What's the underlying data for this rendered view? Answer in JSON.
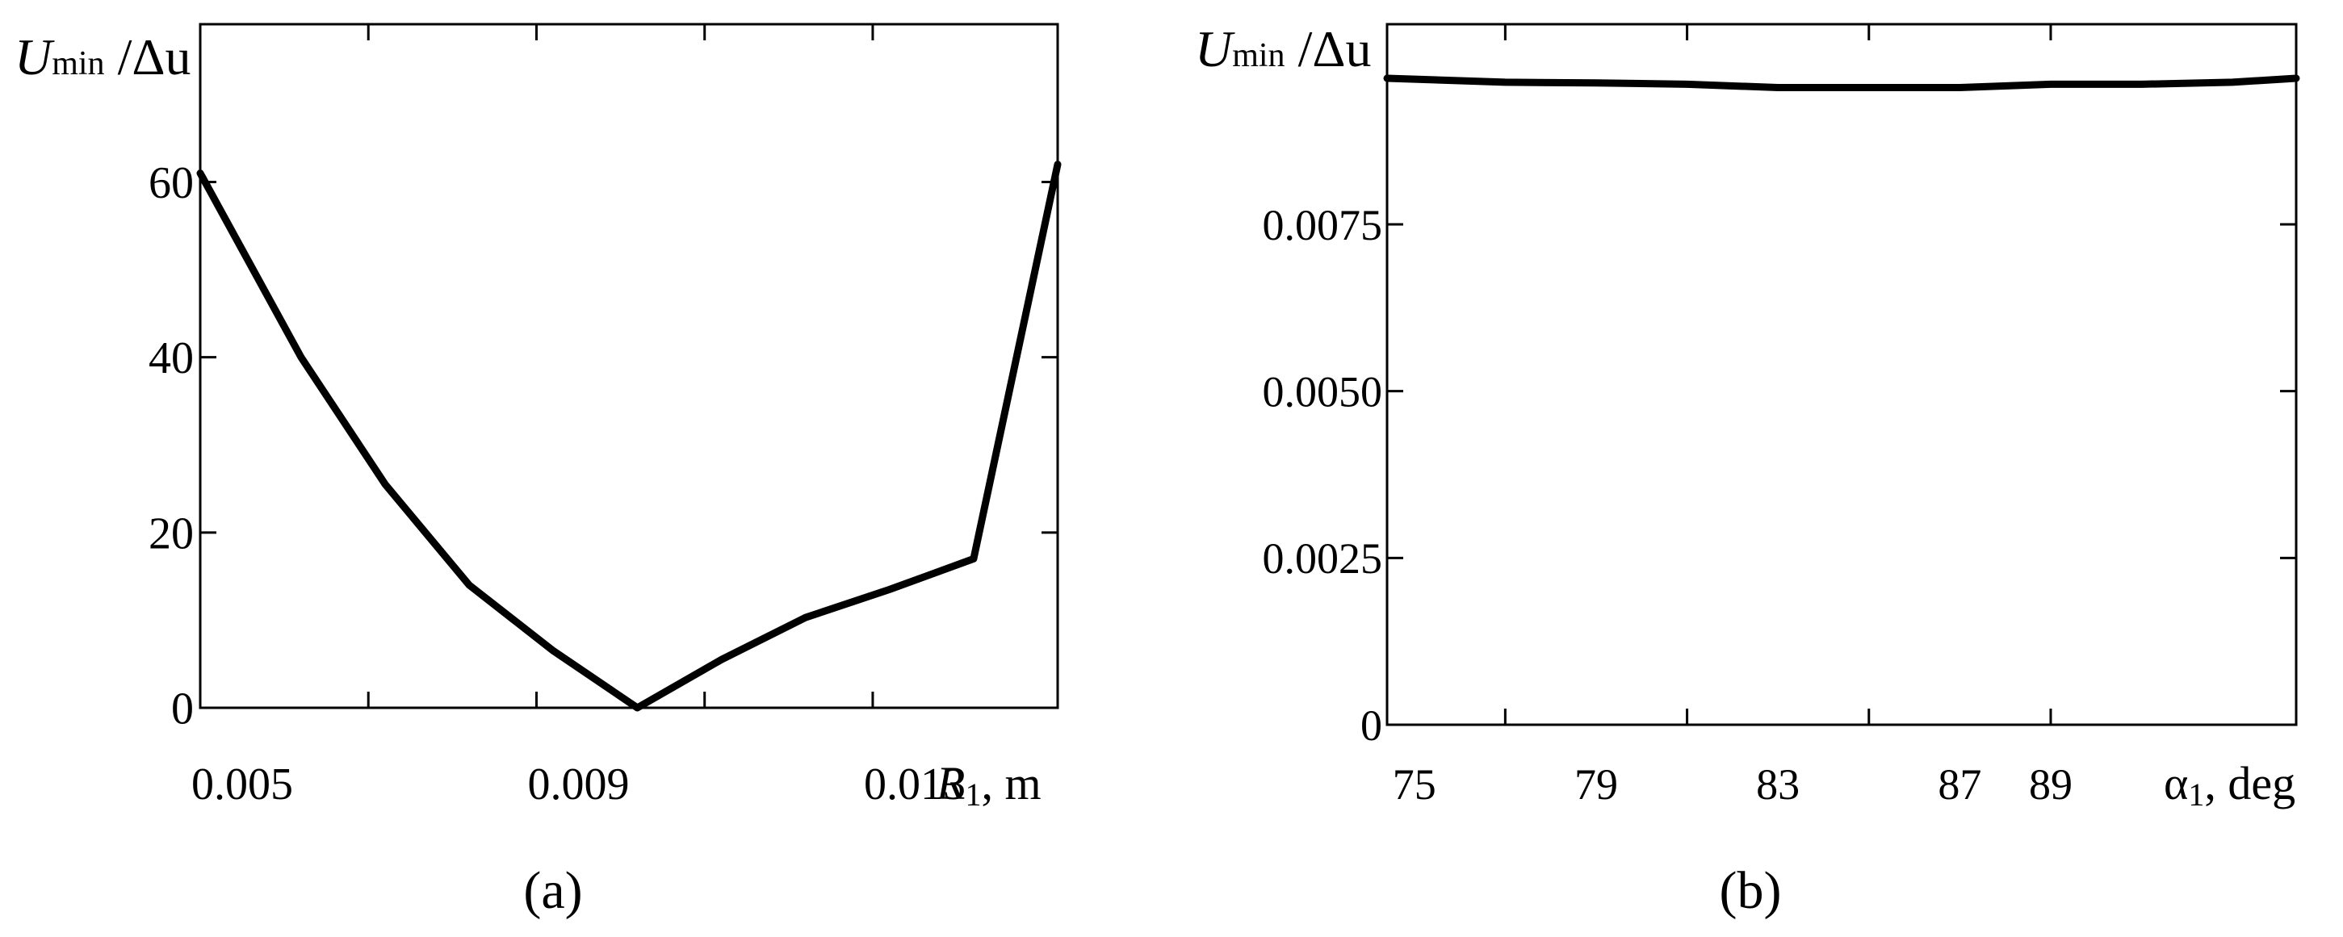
{
  "chart_data": [
    {
      "type": "line",
      "panel_label": "(a)",
      "ylabel_main": "U",
      "ylabel_sub": "min",
      "ylabel_rest": " /Δu",
      "xlabel_main": "R",
      "xlabel_sub": "1",
      "xlabel_rest": ", m",
      "xlim": [
        0.0045,
        0.0147
      ],
      "ylim": [
        0,
        78
      ],
      "xticks": [
        {
          "value": 0.005,
          "label": "0.005"
        },
        {
          "value": 0.009,
          "label": "0.009"
        },
        {
          "value": 0.013,
          "label": "0.013"
        }
      ],
      "xtick_marks": [
        0.0065,
        0.0085,
        0.0105,
        0.0125
      ],
      "yticks": [
        {
          "value": 0,
          "label": "0"
        },
        {
          "value": 20,
          "label": "20"
        },
        {
          "value": 40,
          "label": "40"
        },
        {
          "value": 60,
          "label": "60"
        }
      ],
      "grid": false,
      "series": [
        {
          "x": [
            0.0045,
            0.0057,
            0.0067,
            0.0077,
            0.0087,
            0.0097,
            0.0107,
            0.0117,
            0.0127,
            0.0137,
            0.0147
          ],
          "y": [
            61,
            40,
            25.5,
            14,
            6.5,
            0,
            5.5,
            10.3,
            13.5,
            17,
            62
          ]
        }
      ]
    },
    {
      "type": "line",
      "panel_label": "(b)",
      "ylabel_main": "U",
      "ylabel_sub": "min",
      "ylabel_rest": " /Δu",
      "xlabel_main": "α",
      "xlabel_sub": "1",
      "xlabel_rest": ", deg",
      "xlim": [
        74.4,
        94.4
      ],
      "ylim": [
        0,
        0.0105
      ],
      "xticks": [
        {
          "value": 75,
          "label": "75"
        },
        {
          "value": 79,
          "label": "79"
        },
        {
          "value": 83,
          "label": "83"
        },
        {
          "value": 87,
          "label": "87"
        },
        {
          "value": 89,
          "label": "89"
        }
      ],
      "xtick_marks": [
        77,
        81,
        85,
        89
      ],
      "yticks": [
        {
          "value": 0,
          "label": "0"
        },
        {
          "value": 0.0025,
          "label": "0.0025"
        },
        {
          "value": 0.005,
          "label": "0.0050"
        },
        {
          "value": 0.0075,
          "label": "0.0075"
        }
      ],
      "grid": false,
      "series": [
        {
          "x": [
            74.4,
            77,
            79,
            81,
            83,
            85,
            87,
            89,
            91,
            93,
            94.4
          ],
          "y": [
            0.00969,
            0.00963,
            0.00962,
            0.0096,
            0.00955,
            0.00955,
            0.00955,
            0.0096,
            0.0096,
            0.00963,
            0.00969
          ]
        }
      ]
    }
  ]
}
